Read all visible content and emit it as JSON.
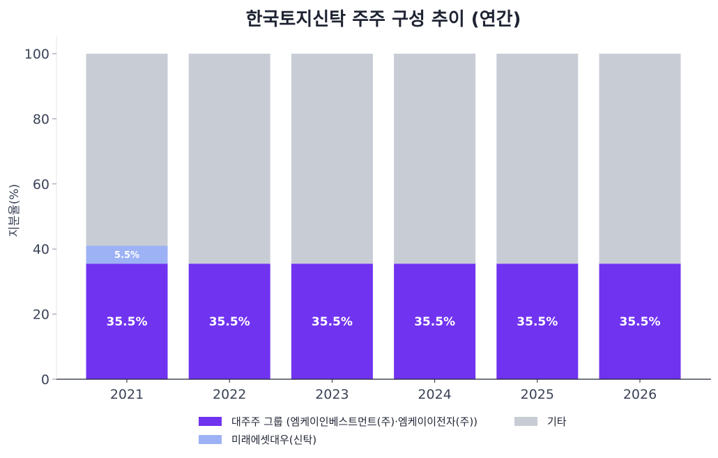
{
  "chart_data": {
    "type": "bar",
    "stacked": true,
    "title": "한국토지신탁 주주 구성 추이 (연간)",
    "xlabel": "",
    "ylabel": "지분율(%)",
    "ylim": [
      0,
      100
    ],
    "yticks": [
      0,
      20,
      40,
      60,
      80,
      100
    ],
    "categories": [
      "2021",
      "2022",
      "2023",
      "2024",
      "2025",
      "2026"
    ],
    "series": [
      {
        "name": "대주주 그룹 (엠케이인베스트먼트(주)·엠케이이전자(주))",
        "color": "#7033f0",
        "values": [
          35.5,
          35.5,
          35.5,
          35.5,
          35.5,
          35.5
        ],
        "labels": [
          "35.5%",
          "35.5%",
          "35.5%",
          "35.5%",
          "35.5%",
          "35.5%"
        ]
      },
      {
        "name": "미래에셋대우(신탁)",
        "color": "#9db2f5",
        "values": [
          5.5,
          0,
          0,
          0,
          0,
          0
        ],
        "labels": [
          "5.5%",
          "",
          "",
          "",
          "",
          ""
        ]
      },
      {
        "name": "기타",
        "color": "#c8ccd5",
        "values": [
          59.0,
          64.5,
          64.5,
          64.5,
          64.5,
          64.5
        ],
        "labels": [
          "",
          "",
          "",
          "",
          "",
          ""
        ]
      }
    ],
    "grid": false,
    "legend_position": "bottom"
  }
}
